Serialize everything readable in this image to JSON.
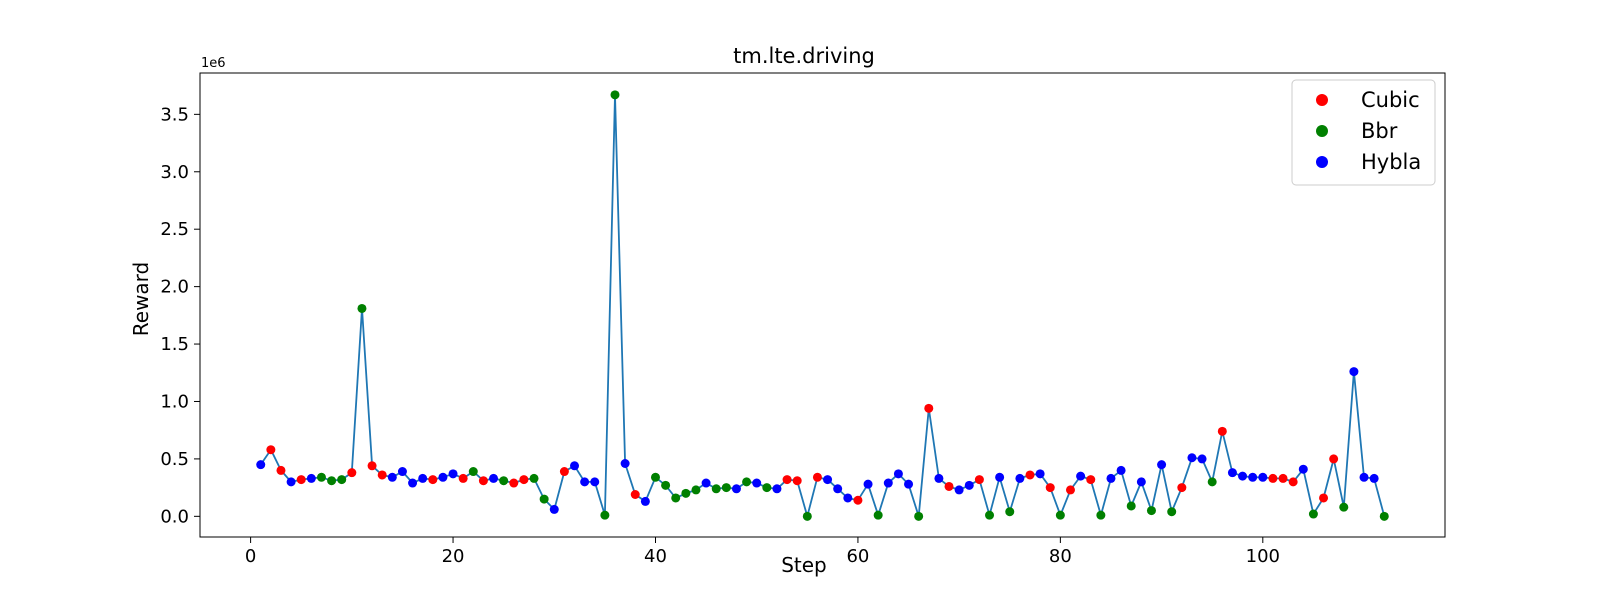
{
  "chart_data": {
    "type": "scatter",
    "title": "tm.lte.driving",
    "xlabel": "Step",
    "ylabel": "Reward",
    "y_offset_text": "1e6",
    "xlim": [
      -5,
      118
    ],
    "ylim": [
      -180000,
      3860000
    ],
    "xticks": [
      0,
      20,
      40,
      60,
      80,
      100
    ],
    "yticks": [
      0,
      500000,
      1000000,
      1500000,
      2000000,
      2500000,
      3000000,
      3500000
    ],
    "ytick_labels": [
      "0.0",
      "0.5",
      "1.0",
      "1.5",
      "2.0",
      "2.5",
      "3.0",
      "3.5"
    ],
    "legend_position": "upper-right",
    "colors": {
      "Cubic": "#ff0000",
      "Bbr": "#008000",
      "Hybla": "#0000ff",
      "line": "#1f77b4"
    },
    "legend": [
      "Cubic",
      "Bbr",
      "Hybla"
    ],
    "x": [
      1,
      2,
      3,
      4,
      5,
      6,
      7,
      8,
      9,
      10,
      11,
      12,
      13,
      14,
      15,
      16,
      17,
      18,
      19,
      20,
      21,
      22,
      23,
      24,
      25,
      26,
      27,
      28,
      29,
      30,
      31,
      32,
      33,
      34,
      35,
      36,
      37,
      38,
      39,
      40,
      41,
      42,
      43,
      44,
      45,
      46,
      47,
      48,
      49,
      50,
      51,
      52,
      53,
      54,
      55,
      56,
      57,
      58,
      59,
      60,
      61,
      62,
      63,
      64,
      65,
      66,
      67,
      68,
      69,
      70,
      71,
      72,
      73,
      74,
      75,
      76,
      77,
      78,
      79,
      80,
      81,
      82,
      83,
      84,
      85,
      86,
      87,
      88,
      89,
      90,
      91,
      92,
      93,
      94,
      95,
      96,
      97,
      98,
      99,
      100,
      101,
      102,
      103,
      104,
      105,
      106,
      107,
      108,
      109,
      110,
      111,
      112
    ],
    "y": [
      450000,
      580000,
      400000,
      300000,
      320000,
      330000,
      340000,
      310000,
      320000,
      380000,
      1810000,
      440000,
      360000,
      340000,
      390000,
      290000,
      330000,
      320000,
      340000,
      370000,
      330000,
      390000,
      310000,
      330000,
      310000,
      290000,
      320000,
      330000,
      150000,
      60000,
      390000,
      440000,
      300000,
      300000,
      10000,
      3670000,
      460000,
      190000,
      130000,
      340000,
      270000,
      160000,
      200000,
      230000,
      290000,
      240000,
      250000,
      240000,
      300000,
      290000,
      250000,
      240000,
      320000,
      310000,
      0,
      340000,
      320000,
      240000,
      160000,
      140000,
      280000,
      10000,
      290000,
      370000,
      280000,
      0,
      940000,
      330000,
      260000,
      230000,
      270000,
      320000,
      10000,
      340000,
      40000,
      330000,
      360000,
      370000,
      250000,
      10000,
      230000,
      350000,
      320000,
      10000,
      330000,
      400000,
      90000,
      300000,
      50000,
      450000,
      40000,
      250000,
      510000,
      500000,
      300000,
      740000,
      380000,
      350000,
      340000,
      340000,
      330000,
      330000,
      300000,
      410000,
      20000,
      160000,
      500000,
      80000,
      1260000,
      340000,
      330000,
      0
    ],
    "algo": [
      "Hybla",
      "Cubic",
      "Cubic",
      "Hybla",
      "Cubic",
      "Hybla",
      "Bbr",
      "Bbr",
      "Bbr",
      "Cubic",
      "Bbr",
      "Cubic",
      "Cubic",
      "Hybla",
      "Hybla",
      "Hybla",
      "Hybla",
      "Cubic",
      "Hybla",
      "Hybla",
      "Cubic",
      "Bbr",
      "Cubic",
      "Hybla",
      "Bbr",
      "Cubic",
      "Cubic",
      "Bbr",
      "Bbr",
      "Hybla",
      "Cubic",
      "Hybla",
      "Hybla",
      "Hybla",
      "Bbr",
      "Bbr",
      "Hybla",
      "Cubic",
      "Hybla",
      "Bbr",
      "Bbr",
      "Bbr",
      "Bbr",
      "Bbr",
      "Hybla",
      "Bbr",
      "Bbr",
      "Hybla",
      "Bbr",
      "Hybla",
      "Bbr",
      "Hybla",
      "Cubic",
      "Cubic",
      "Bbr",
      "Cubic",
      "Hybla",
      "Hybla",
      "Hybla",
      "Cubic",
      "Hybla",
      "Bbr",
      "Hybla",
      "Hybla",
      "Hybla",
      "Bbr",
      "Cubic",
      "Hybla",
      "Cubic",
      "Hybla",
      "Hybla",
      "Cubic",
      "Bbr",
      "Hybla",
      "Bbr",
      "Hybla",
      "Cubic",
      "Hybla",
      "Cubic",
      "Bbr",
      "Cubic",
      "Hybla",
      "Cubic",
      "Bbr",
      "Hybla",
      "Hybla",
      "Bbr",
      "Hybla",
      "Bbr",
      "Hybla",
      "Bbr",
      "Cubic",
      "Hybla",
      "Hybla",
      "Bbr",
      "Cubic",
      "Hybla",
      "Hybla",
      "Hybla",
      "Hybla",
      "Cubic",
      "Cubic",
      "Cubic",
      "Hybla",
      "Bbr",
      "Cubic",
      "Cubic",
      "Bbr",
      "Hybla",
      "Hybla",
      "Hybla",
      "Bbr"
    ]
  }
}
